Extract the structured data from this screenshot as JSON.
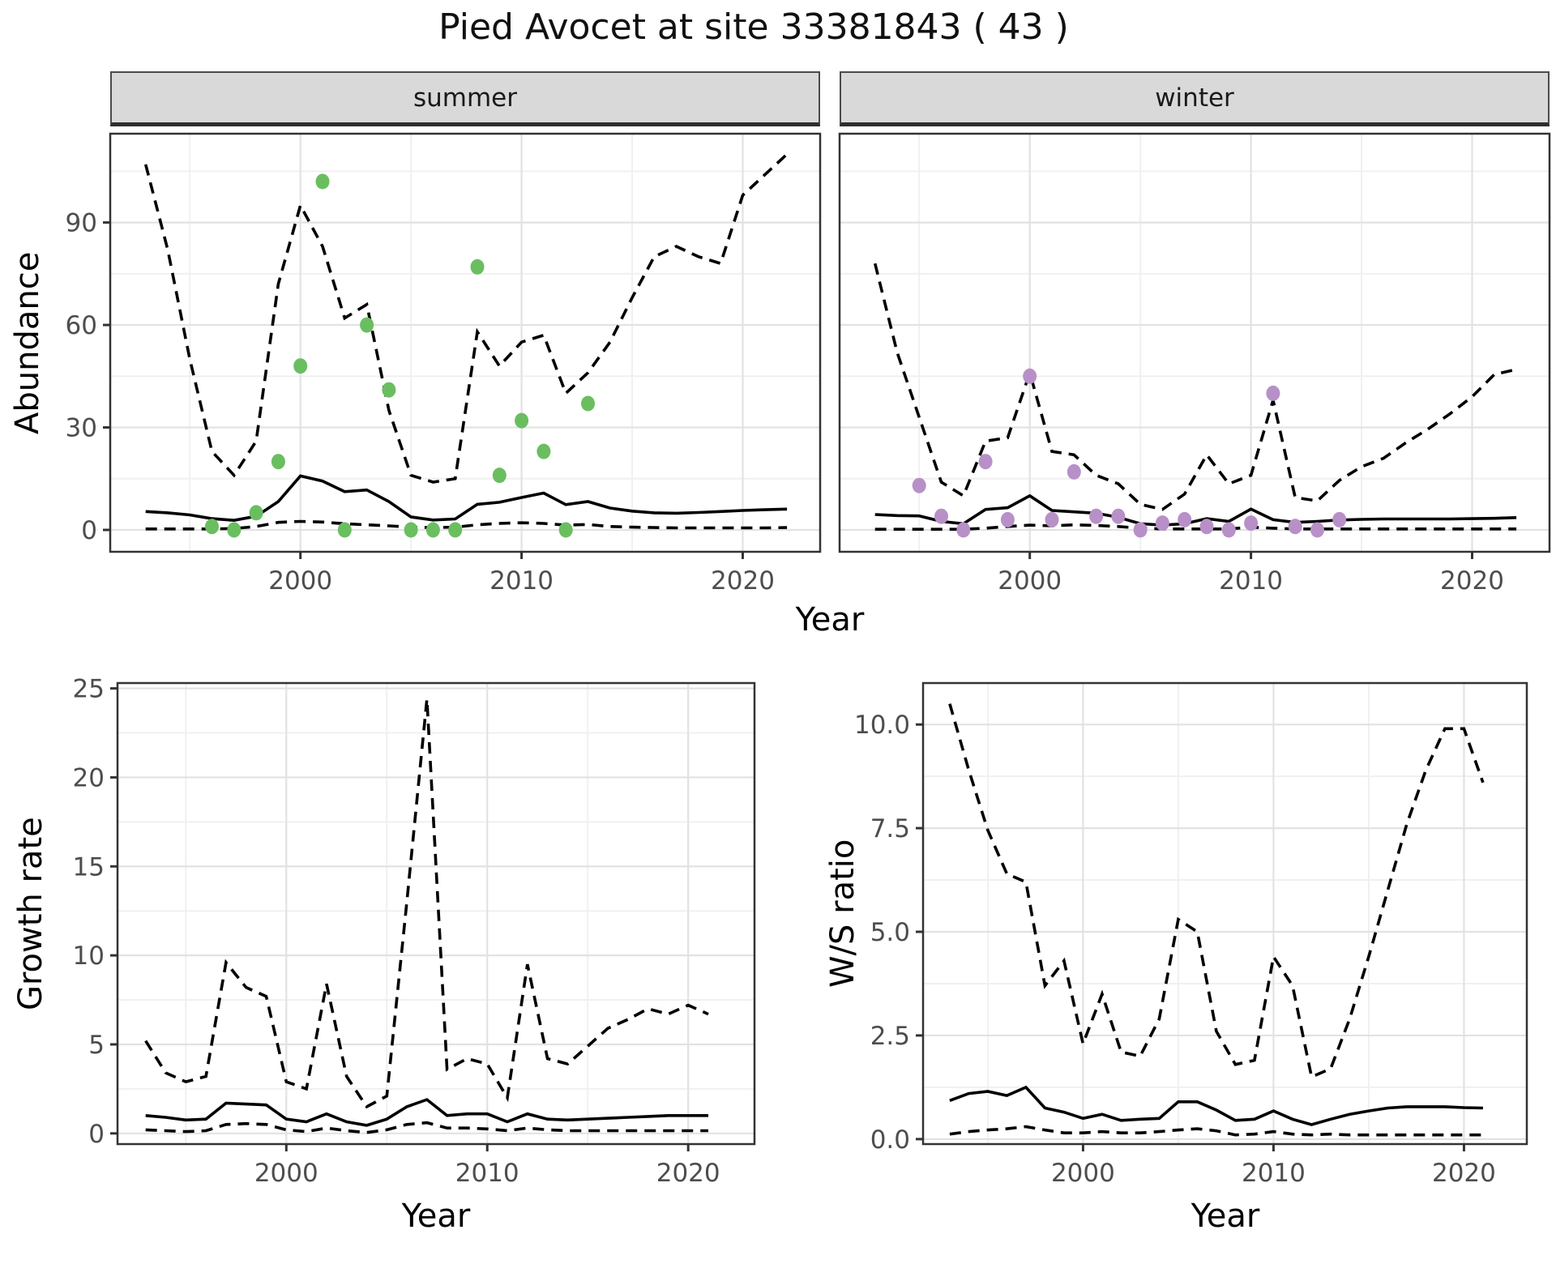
{
  "title": "Pied Avocet at site 33381843 ( 43 )",
  "facets": {
    "summer": "summer",
    "winter": "winter"
  },
  "axis_titles": {
    "abundance": "Abundance",
    "growth": "Growth rate",
    "ws": "W/S ratio",
    "year": "Year"
  },
  "colors": {
    "summer_points": "#6abe60",
    "winter_points": "#b890c8",
    "line": "#000000",
    "tick_text": "#4d4d4d",
    "panel_border": "#333333",
    "grid_major": "#e2e2e2",
    "grid_minor": "#f0f0f0",
    "strip_bg": "#d9d9d9"
  },
  "chart_data": [
    {
      "id": "abundance-summer",
      "type": "line",
      "facet": "summer",
      "ylabel": "Abundance",
      "xlabel": "Year",
      "xlim": [
        1991.4,
        2023.5
      ],
      "ylim": [
        -6.4,
        116
      ],
      "x_ticks": [
        2000,
        2010,
        2020
      ],
      "x_tick_labels": [
        "2000",
        "2010",
        "2020"
      ],
      "y_ticks": [
        0,
        30,
        60,
        90
      ],
      "y_tick_labels": [
        "0",
        "30",
        "60",
        "90"
      ],
      "show_y_tick_labels": true,
      "grid": true,
      "legend": "none",
      "series": [
        {
          "name": "upper_ci",
          "style": "dashed",
          "x": [
            1993,
            1994,
            1995,
            1996,
            1997,
            1998,
            1999,
            2000,
            2001,
            2002,
            2003,
            2004,
            2005,
            2006,
            2007,
            2008,
            2009,
            2010,
            2011,
            2012,
            2013,
            2014,
            2015,
            2016,
            2017,
            2018,
            2019,
            2020,
            2021,
            2022
          ],
          "y": [
            107,
            82,
            50,
            23,
            16,
            26,
            72,
            95,
            83,
            62,
            66,
            35,
            16,
            14,
            15,
            58,
            48,
            55,
            57,
            40,
            46,
            55,
            68,
            80,
            83,
            80,
            78,
            98,
            104,
            110
          ]
        },
        {
          "name": "fit",
          "style": "solid",
          "x": [
            1993,
            1994,
            1995,
            1996,
            1997,
            1998,
            1999,
            2000,
            2001,
            2002,
            2003,
            2004,
            2005,
            2006,
            2007,
            2008,
            2009,
            2010,
            2011,
            2012,
            2013,
            2014,
            2015,
            2016,
            2017,
            2018,
            2019,
            2020,
            2021,
            2022
          ],
          "y": [
            5.4,
            5.0,
            4.4,
            3.3,
            2.8,
            4.0,
            8.3,
            15.8,
            14.3,
            11.2,
            11.7,
            8.3,
            3.8,
            2.9,
            3.2,
            7.5,
            8.1,
            9.5,
            10.8,
            7.4,
            8.3,
            6.4,
            5.5,
            5.0,
            4.9,
            5.1,
            5.4,
            5.7,
            5.9,
            6.1
          ]
        },
        {
          "name": "lower_ci",
          "style": "dashed",
          "x": [
            1993,
            1994,
            1995,
            1996,
            1997,
            1998,
            1999,
            2000,
            2001,
            2002,
            2003,
            2004,
            2005,
            2006,
            2007,
            2008,
            2009,
            2010,
            2011,
            2012,
            2013,
            2014,
            2015,
            2016,
            2017,
            2018,
            2019,
            2020,
            2021,
            2022
          ],
          "y": [
            0.3,
            0.3,
            0.3,
            0.3,
            0.4,
            1.0,
            2.2,
            2.5,
            2.3,
            1.8,
            1.5,
            1.2,
            0.8,
            0.7,
            0.8,
            1.5,
            1.9,
            2.1,
            1.9,
            1.4,
            1.6,
            1.0,
            0.8,
            0.7,
            0.6,
            0.6,
            0.6,
            0.6,
            0.6,
            0.7
          ]
        }
      ],
      "points": {
        "name": "observed_summer",
        "color": "#6abe60",
        "x": [
          1996,
          1997,
          1998,
          1999,
          2000,
          2001,
          2002,
          2003,
          2004,
          2005,
          2006,
          2007,
          2008,
          2009,
          2010,
          2011,
          2012,
          2013
        ],
        "y": [
          1,
          0,
          5,
          20,
          48,
          102,
          0,
          60,
          41,
          0,
          0,
          0,
          77,
          16,
          32,
          23,
          0,
          37
        ]
      }
    },
    {
      "id": "abundance-winter",
      "type": "line",
      "facet": "winter",
      "ylabel": "Abundance",
      "xlabel": "Year",
      "xlim": [
        1991.4,
        2023.5
      ],
      "ylim": [
        -6.4,
        116
      ],
      "x_ticks": [
        2000,
        2010,
        2020
      ],
      "x_tick_labels": [
        "2000",
        "2010",
        "2020"
      ],
      "y_ticks": [
        0,
        30,
        60,
        90
      ],
      "y_tick_labels": [
        "0",
        "30",
        "60",
        "90"
      ],
      "show_y_tick_labels": false,
      "grid": true,
      "legend": "none",
      "series": [
        {
          "name": "upper_ci",
          "style": "dashed",
          "x": [
            1993,
            1994,
            1995,
            1996,
            1997,
            1998,
            1999,
            2000,
            2001,
            2002,
            2003,
            2004,
            2005,
            2006,
            2007,
            2008,
            2009,
            2010,
            2011,
            2012,
            2013,
            2014,
            2015,
            2016,
            2017,
            2018,
            2019,
            2020,
            2021,
            2022
          ],
          "y": [
            78,
            52,
            33,
            14,
            10,
            26,
            27,
            46,
            23,
            22,
            16,
            13.5,
            7.5,
            6,
            10.5,
            22,
            13.5,
            16,
            38,
            9.5,
            8.5,
            14.5,
            18.5,
            21,
            25.5,
            29.5,
            34,
            39,
            45.5,
            47
          ]
        },
        {
          "name": "fit",
          "style": "solid",
          "x": [
            1993,
            1994,
            1995,
            1996,
            1997,
            1998,
            1999,
            2000,
            2001,
            2002,
            2003,
            2004,
            2005,
            2006,
            2007,
            2008,
            2009,
            2010,
            2011,
            2012,
            2013,
            2014,
            2015,
            2016,
            2017,
            2018,
            2019,
            2020,
            2021,
            2022
          ],
          "y": [
            4.5,
            4.2,
            4.1,
            2.5,
            1.8,
            6.0,
            6.5,
            10.0,
            5.7,
            5.3,
            4.9,
            3.7,
            1.8,
            1.4,
            1.8,
            3.3,
            2.5,
            6.1,
            3.0,
            2.2,
            2.5,
            2.9,
            3.1,
            3.2,
            3.2,
            3.2,
            3.2,
            3.3,
            3.4,
            3.6
          ]
        },
        {
          "name": "lower_ci",
          "style": "dashed",
          "x": [
            1993,
            1994,
            1995,
            1996,
            1997,
            1998,
            1999,
            2000,
            2001,
            2002,
            2003,
            2004,
            2005,
            2006,
            2007,
            2008,
            2009,
            2010,
            2011,
            2012,
            2013,
            2014,
            2015,
            2016,
            2017,
            2018,
            2019,
            2020,
            2021,
            2022
          ],
          "y": [
            0.2,
            0.2,
            0.2,
            0.2,
            0.2,
            0.5,
            1.0,
            1.4,
            1.2,
            1.5,
            1.3,
            1.0,
            0.5,
            0.3,
            0.3,
            0.3,
            0.3,
            0.8,
            0.5,
            0.3,
            0.3,
            0.3,
            0.3,
            0.3,
            0.3,
            0.3,
            0.3,
            0.3,
            0.3,
            0.3
          ]
        }
      ],
      "points": {
        "name": "observed_winter",
        "color": "#b890c8",
        "x": [
          1995,
          1996,
          1997,
          1998,
          1999,
          2000,
          2001,
          2002,
          2003,
          2004,
          2005,
          2006,
          2007,
          2008,
          2009,
          2010,
          2011,
          2012,
          2013,
          2014
        ],
        "y": [
          13,
          4,
          0,
          20,
          3,
          45,
          3,
          17,
          4,
          4,
          0,
          2,
          3,
          1,
          0,
          2,
          40,
          1,
          0,
          3
        ]
      }
    },
    {
      "id": "growth",
      "type": "line",
      "facet": null,
      "ylabel": "Growth rate",
      "xlabel": "Year",
      "xlim": [
        1991.6,
        2023.3
      ],
      "ylim": [
        -0.6,
        25.3
      ],
      "x_ticks": [
        2000,
        2010,
        2020
      ],
      "x_tick_labels": [
        "2000",
        "2010",
        "2020"
      ],
      "y_ticks": [
        0,
        5,
        10,
        15,
        20,
        25
      ],
      "y_tick_labels": [
        "0",
        "5",
        "10",
        "15",
        "20",
        "25"
      ],
      "show_y_tick_labels": true,
      "grid": true,
      "legend": "none",
      "series": [
        {
          "name": "upper_ci",
          "style": "dashed",
          "x": [
            1993,
            1994,
            1995,
            1996,
            1997,
            1998,
            1999,
            2000,
            2001,
            2002,
            2003,
            2004,
            2005,
            2006,
            2007,
            2008,
            2009,
            2010,
            2011,
            2012,
            2013,
            2014,
            2015,
            2016,
            2017,
            2018,
            2019,
            2020,
            2021
          ],
          "y": [
            5.2,
            3.4,
            2.9,
            3.2,
            9.6,
            8.2,
            7.7,
            2.9,
            2.5,
            8.4,
            3.2,
            1.5,
            2.1,
            13.0,
            24.4,
            3.6,
            4.2,
            3.9,
            2.0,
            9.5,
            4.2,
            3.9,
            4.9,
            5.9,
            6.4,
            7.0,
            6.7,
            7.2,
            6.7
          ]
        },
        {
          "name": "fit",
          "style": "solid",
          "x": [
            1993,
            1994,
            1995,
            1996,
            1997,
            1998,
            1999,
            2000,
            2001,
            2002,
            2003,
            2004,
            2005,
            2006,
            2007,
            2008,
            2009,
            2010,
            2011,
            2012,
            2013,
            2014,
            2015,
            2016,
            2017,
            2018,
            2019,
            2020,
            2021
          ],
          "y": [
            1.0,
            0.9,
            0.75,
            0.8,
            1.7,
            1.65,
            1.6,
            0.8,
            0.65,
            1.1,
            0.65,
            0.45,
            0.8,
            1.5,
            1.9,
            1.0,
            1.1,
            1.1,
            0.65,
            1.1,
            0.8,
            0.75,
            0.8,
            0.85,
            0.9,
            0.95,
            1.0,
            1.0,
            1.0
          ]
        },
        {
          "name": "lower_ci",
          "style": "dashed",
          "x": [
            1993,
            1994,
            1995,
            1996,
            1997,
            1998,
            1999,
            2000,
            2001,
            2002,
            2003,
            2004,
            2005,
            2006,
            2007,
            2008,
            2009,
            2010,
            2011,
            2012,
            2013,
            2014,
            2015,
            2016,
            2017,
            2018,
            2019,
            2020,
            2021
          ],
          "y": [
            0.2,
            0.15,
            0.1,
            0.15,
            0.5,
            0.55,
            0.5,
            0.2,
            0.1,
            0.3,
            0.15,
            0.05,
            0.2,
            0.5,
            0.6,
            0.3,
            0.3,
            0.25,
            0.15,
            0.3,
            0.2,
            0.15,
            0.15,
            0.15,
            0.15,
            0.15,
            0.15,
            0.15,
            0.15
          ]
        }
      ],
      "points": null
    },
    {
      "id": "ws",
      "type": "line",
      "facet": null,
      "ylabel": "W/S ratio",
      "xlabel": "Year",
      "xlim": [
        1991.6,
        2023.3
      ],
      "ylim": [
        -0.12,
        11.0
      ],
      "x_ticks": [
        2000,
        2010,
        2020
      ],
      "x_tick_labels": [
        "2000",
        "2010",
        "2020"
      ],
      "y_ticks": [
        0,
        2.5,
        5,
        7.5,
        10
      ],
      "y_tick_labels": [
        "0.0",
        "2.5",
        "5.0",
        "7.5",
        "10.0"
      ],
      "show_y_tick_labels": true,
      "grid": true,
      "legend": "none",
      "series": [
        {
          "name": "upper_ci",
          "style": "dashed",
          "x": [
            1993,
            1994,
            1995,
            1996,
            1997,
            1998,
            1999,
            2000,
            2001,
            2002,
            2003,
            2004,
            2005,
            2006,
            2007,
            2008,
            2009,
            2010,
            2011,
            2012,
            2013,
            2014,
            2015,
            2016,
            2017,
            2018,
            2019,
            2020,
            2021
          ],
          "y": [
            10.5,
            8.9,
            7.45,
            6.4,
            6.2,
            3.7,
            4.3,
            2.3,
            3.5,
            2.1,
            2.0,
            2.9,
            5.3,
            5.0,
            2.6,
            1.8,
            1.9,
            4.4,
            3.7,
            1.5,
            1.7,
            2.9,
            4.4,
            6.0,
            7.6,
            8.9,
            9.9,
            9.9,
            8.6
          ]
        },
        {
          "name": "fit",
          "style": "solid",
          "x": [
            1993,
            1994,
            1995,
            1996,
            1997,
            1998,
            1999,
            2000,
            2001,
            2002,
            2003,
            2004,
            2005,
            2006,
            2007,
            2008,
            2009,
            2010,
            2011,
            2012,
            2013,
            2014,
            2015,
            2016,
            2017,
            2018,
            2019,
            2020,
            2021
          ],
          "y": [
            0.93,
            1.1,
            1.15,
            1.05,
            1.25,
            0.75,
            0.65,
            0.5,
            0.6,
            0.45,
            0.48,
            0.5,
            0.9,
            0.9,
            0.7,
            0.45,
            0.48,
            0.68,
            0.48,
            0.35,
            0.48,
            0.6,
            0.68,
            0.75,
            0.78,
            0.78,
            0.78,
            0.76,
            0.75
          ]
        },
        {
          "name": "lower_ci",
          "style": "dashed",
          "x": [
            1993,
            1994,
            1995,
            1996,
            1997,
            1998,
            1999,
            2000,
            2001,
            2002,
            2003,
            2004,
            2005,
            2006,
            2007,
            2008,
            2009,
            2010,
            2011,
            2012,
            2013,
            2014,
            2015,
            2016,
            2017,
            2018,
            2019,
            2020,
            2021
          ],
          "y": [
            0.12,
            0.18,
            0.22,
            0.25,
            0.3,
            0.22,
            0.15,
            0.15,
            0.18,
            0.15,
            0.15,
            0.18,
            0.22,
            0.25,
            0.2,
            0.1,
            0.12,
            0.18,
            0.12,
            0.1,
            0.12,
            0.1,
            0.1,
            0.1,
            0.1,
            0.1,
            0.1,
            0.1,
            0.1
          ]
        }
      ],
      "points": null
    }
  ]
}
